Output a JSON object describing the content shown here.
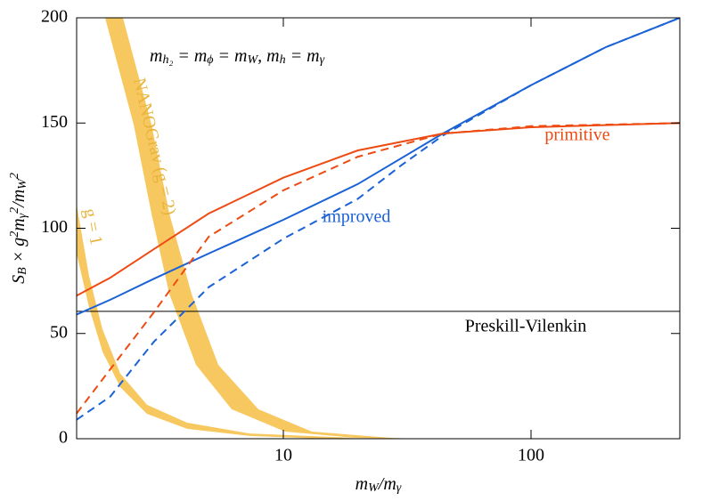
{
  "chart_data": {
    "type": "line",
    "xscale": "log",
    "xlim": [
      1.464,
      398.7
    ],
    "ylim": [
      0,
      200
    ],
    "xticks": [
      10,
      100
    ],
    "yticks": [
      0,
      50,
      100,
      150,
      200
    ],
    "xlabel": [
      [
        "m",
        "base"
      ],
      [
        "W",
        "sub"
      ],
      [
        "/m",
        "base"
      ],
      [
        "γ",
        "sub"
      ]
    ],
    "ylabel": [
      [
        "S",
        "base"
      ],
      [
        "B",
        "sub"
      ],
      [
        " × g",
        "base"
      ],
      [
        "2",
        "sup"
      ],
      [
        "m",
        "base"
      ],
      [
        "γ",
        "sub"
      ],
      [
        "2",
        "sup"
      ],
      [
        "/m",
        "base"
      ],
      [
        "W",
        "sub"
      ],
      [
        "2",
        "sup"
      ]
    ],
    "annotation": [
      [
        "m",
        "base"
      ],
      [
        "h₂",
        "sub"
      ],
      [
        " = m",
        "base"
      ],
      [
        "ϕ",
        "sub"
      ],
      [
        " = m",
        "base"
      ],
      [
        "W",
        "sub"
      ],
      [
        ",  m",
        "base"
      ],
      [
        "h",
        "sub"
      ],
      [
        " = m",
        "base"
      ],
      [
        "γ",
        "sub"
      ]
    ],
    "series": [
      {
        "color": "#1a62d6",
        "dashed": false,
        "x": [
          1.464,
          2,
          3,
          5,
          10,
          20,
          44,
          100,
          200,
          398.7
        ],
        "values": [
          59,
          66,
          76,
          88,
          104,
          121,
          145,
          168,
          186,
          200
        ]
      },
      {
        "color": "#1a62d6",
        "dashed": true,
        "x": [
          1.464,
          2,
          3,
          5,
          10,
          20,
          30,
          44,
          100,
          200,
          398.7
        ],
        "values": [
          9,
          20,
          46,
          72,
          95,
          114,
          130,
          144,
          168,
          186,
          200
        ]
      },
      {
        "color": "#ee4b13",
        "dashed": false,
        "x": [
          1.464,
          2,
          3,
          5,
          10,
          20,
          44,
          100,
          398.7
        ],
        "values": [
          68,
          76.5,
          90,
          107,
          124,
          137,
          145,
          148,
          150
        ]
      },
      {
        "color": "#ee4b13",
        "dashed": true,
        "x": [
          1.464,
          2,
          3,
          5,
          10,
          20,
          44,
          100,
          398.7
        ],
        "values": [
          12,
          33,
          60,
          96,
          118,
          134,
          145,
          148.5,
          150
        ]
      }
    ],
    "line_labels": [
      {
        "text": "improved",
        "color": "#1a62d6"
      },
      {
        "text": "primitive",
        "color": "#ee4b13"
      }
    ],
    "reference_lines": [
      {
        "y": 60.5,
        "label": "Preskill-Vilenkin",
        "color": "#000000"
      }
    ],
    "bands": [
      {
        "label": "NANOGrav (g = 2)",
        "color": "#f8c860",
        "text_color": "#e8b43c",
        "lower_x": [
          1.908,
          2.488,
          2.936,
          3.464,
          4.441,
          6.185,
          10.17,
          19.72,
          35.2
        ],
        "lower": [
          200,
          149.3,
          107,
          68.9,
          35.1,
          14,
          3.4,
          0.4,
          0
        ],
        "upper_x": [
          2.252,
          2.936,
          3.464,
          4.261,
          5.463,
          7.93,
          13.04,
          27.47,
          35.2
        ],
        "upper": [
          200,
          149.3,
          107,
          68.9,
          35.1,
          14,
          3.4,
          0.4,
          0
        ]
      },
      {
        "label": "g = 1",
        "color": "#f8c860",
        "text_color": "#e8b43c",
        "lower_x": [
          1.464,
          1.643,
          1.861,
          2.196,
          2.816,
          4.088,
          7.3,
          14.16
        ],
        "lower": [
          87.9,
          62.6,
          41.4,
          24.5,
          11.8,
          4.7,
          1.3,
          0
        ],
        "upper_x": [
          1.464,
          1.643,
          1.861,
          2.196,
          2.816,
          4.088,
          7.3,
          19.72
        ],
        "upper": [
          111.2,
          77.4,
          52,
          30.9,
          16.1,
          7.6,
          2.5,
          0.4
        ]
      }
    ]
  }
}
